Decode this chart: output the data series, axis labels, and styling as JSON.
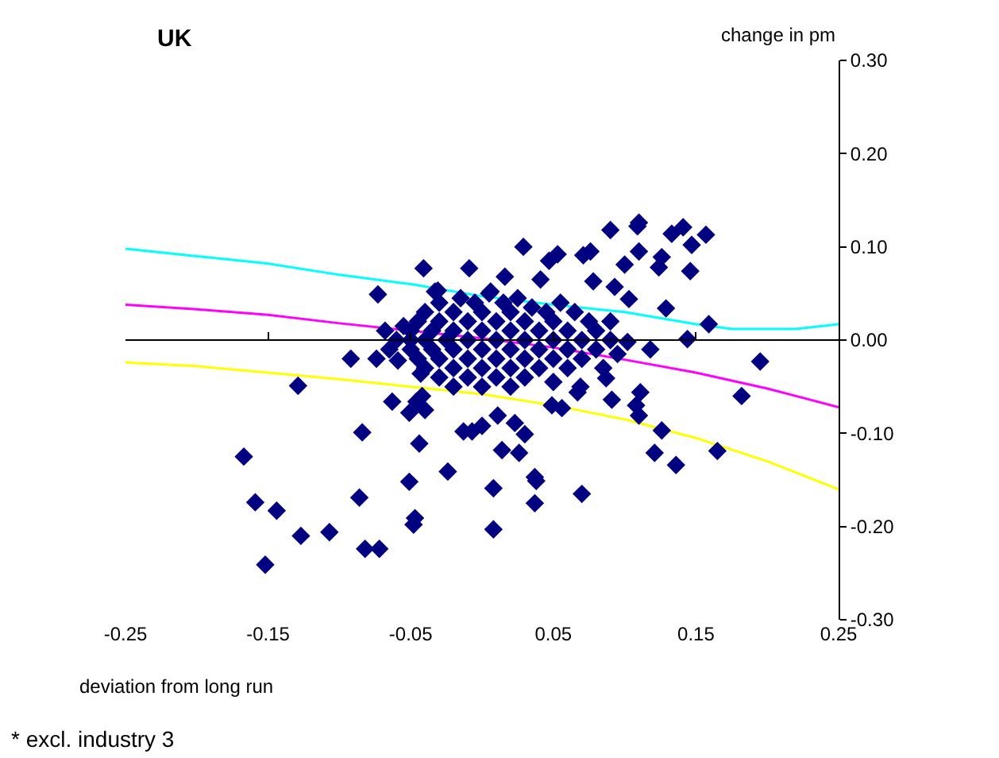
{
  "chart_data": {
    "type": "scatter",
    "title": "UK",
    "xlabel": "deviation from long run",
    "ylabel": "change in pm",
    "annotations": [
      "* excl. industry 3"
    ],
    "xlim": [
      -0.25,
      0.25
    ],
    "xticks": [
      -0.25,
      -0.15,
      -0.05,
      0.05,
      0.15,
      0.25
    ],
    "ylim": [
      -0.3,
      0.3
    ],
    "yticks": [
      {
        "value": -0.3,
        "label": "-0.30"
      },
      {
        "value": -0.2,
        "label": "-0.20"
      },
      {
        "value": -0.1,
        "label": "-0.10"
      },
      {
        "value": 0,
        "label": "0.00"
      },
      {
        "value": 0.1,
        "label": "0.10"
      },
      {
        "value": 0.2,
        "label": "0.20"
      },
      {
        "value": 0.3,
        "label": "0.30"
      }
    ],
    "grid": false,
    "ref_lines": [
      {
        "axis": "y",
        "value": 0,
        "color": "#000000",
        "line_style": "solid"
      }
    ],
    "marker": "diamond",
    "series": [
      {
        "type": "line",
        "marker": "none",
        "color": "#00ffff",
        "x": [
          -0.25,
          -0.2,
          -0.15,
          -0.1,
          -0.05,
          0,
          0.05,
          0.1,
          0.15,
          0.175,
          0.22,
          0.25
        ],
        "values": [
          0.098,
          0.09,
          0.082,
          0.07,
          0.06,
          0.047,
          0.038,
          0.03,
          0.017,
          0.012,
          0.012,
          0.017
        ]
      },
      {
        "type": "line",
        "marker": "none",
        "color": "#ff00ff",
        "x": [
          -0.25,
          -0.2,
          -0.15,
          -0.1,
          -0.05,
          0,
          0.05,
          0.1,
          0.15,
          0.2,
          0.25
        ],
        "values": [
          0.038,
          0.033,
          0.027,
          0.018,
          0.01,
          0.002,
          -0.008,
          -0.021,
          -0.035,
          -0.052,
          -0.072
        ]
      },
      {
        "type": "line",
        "marker": "none",
        "color": "#ffff00",
        "x": [
          -0.25,
          -0.2,
          -0.15,
          -0.1,
          -0.05,
          0,
          0.05,
          0.1,
          0.15,
          0.2,
          0.25
        ],
        "values": [
          -0.024,
          -0.028,
          -0.035,
          -0.042,
          -0.05,
          -0.058,
          -0.07,
          -0.085,
          -0.105,
          -0.13,
          -0.16
        ]
      },
      {
        "color": "#000080",
        "x": [
          -0.167,
          -0.159,
          -0.144,
          -0.152,
          -0.129,
          -0.127,
          -0.107,
          -0.086,
          -0.084,
          -0.082,
          -0.072,
          -0.092,
          -0.074,
          -0.073,
          -0.051,
          -0.048,
          -0.047,
          -0.044,
          -0.042,
          -0.041,
          -0.009,
          -0.031,
          -0.063,
          -0.046,
          -0.051,
          -0.04,
          -0.024,
          0.008,
          0.008,
          -0.013,
          0,
          0.11,
          0.09,
          0.109,
          0.133,
          0.141,
          0.157,
          0.147,
          0.029,
          0.053,
          0.047,
          0.071,
          0.076,
          0.11,
          0.1,
          0.126,
          0.124,
          0.146,
          0.016,
          0.041,
          0.093,
          0.078,
          0.103,
          0.129,
          0.159,
          0.144,
          0.118,
          0.195,
          0.182,
          -0.043,
          0.111,
          0.108,
          0.11,
          0.126,
          0.121,
          0.136,
          0.165,
          0.091,
          0.037,
          0.038,
          0.037,
          0.07,
          0.014,
          0.026,
          0.03,
          -0.007,
          0.011,
          0.023,
          0.049,
          0.056,
          0.069,
          0.067,
          0.087,
          0.102,
          -0.033,
          0.006,
          -0.068,
          -0.059,
          -0.05,
          -0.05,
          -0.05,
          -0.045,
          -0.045,
          -0.04,
          -0.04,
          -0.04,
          -0.035,
          -0.035,
          -0.03,
          -0.03,
          -0.03,
          -0.03,
          -0.025,
          -0.02,
          -0.02,
          -0.02,
          -0.02,
          -0.02,
          -0.015,
          -0.01,
          -0.01,
          -0.01,
          -0.01,
          -0.005,
          0,
          0,
          0,
          0,
          0,
          0.005,
          0.01,
          0.01,
          0.01,
          0.01,
          0.015,
          0.02,
          0.02,
          0.02,
          0.02,
          0.02,
          0.025,
          0.03,
          0.03,
          0.03,
          0.03,
          0.035,
          0.04,
          0.04,
          0.04,
          0.045,
          0.05,
          0.05,
          0.05,
          0.05,
          0.055,
          0.06,
          0.06,
          0.06,
          0.065,
          0.07,
          0.07,
          0.075,
          0.08,
          0.08,
          0.085,
          0.09,
          0.09,
          0.095,
          -0.06,
          -0.065,
          -0.055
        ],
        "values": [
          -0.125,
          -0.174,
          -0.183,
          -0.241,
          -0.049,
          -0.21,
          -0.206,
          -0.169,
          -0.099,
          -0.224,
          -0.224,
          -0.02,
          -0.02,
          0.049,
          -0.152,
          -0.198,
          -0.191,
          -0.111,
          -0.06,
          0.077,
          0.077,
          0.053,
          -0.066,
          -0.066,
          -0.078,
          -0.075,
          -0.141,
          -0.203,
          -0.159,
          -0.098,
          -0.092,
          0.126,
          0.118,
          0.122,
          0.114,
          0.121,
          0.113,
          0.102,
          0.1,
          0.092,
          0.085,
          0.091,
          0.095,
          0.095,
          0.081,
          0.089,
          0.078,
          0.074,
          0.068,
          0.065,
          0.057,
          0.063,
          0.044,
          0.034,
          0.017,
          0.001,
          -0.01,
          -0.023,
          -0.06,
          -0.036,
          -0.056,
          -0.07,
          -0.081,
          -0.097,
          -0.121,
          -0.134,
          -0.119,
          -0.064,
          -0.147,
          -0.151,
          -0.175,
          -0.165,
          -0.118,
          -0.121,
          -0.101,
          -0.098,
          -0.081,
          -0.089,
          -0.07,
          -0.073,
          -0.05,
          -0.056,
          -0.041,
          -0.002,
          0.052,
          0.052,
          0.01,
          -0.022,
          0,
          0.01,
          -0.01,
          0.02,
          -0.02,
          0.03,
          0,
          -0.03,
          0.01,
          -0.01,
          0.04,
          0.02,
          -0.02,
          -0.04,
          0,
          0.03,
          0.01,
          -0.01,
          -0.03,
          -0.05,
          0.045,
          0.02,
          0,
          -0.02,
          -0.04,
          0.04,
          0.03,
          0.01,
          -0.01,
          -0.03,
          -0.05,
          0.05,
          0.02,
          0,
          -0.02,
          -0.04,
          0.04,
          0.03,
          0.01,
          -0.01,
          -0.03,
          -0.05,
          0.045,
          0.02,
          0,
          -0.02,
          -0.04,
          0.035,
          0.01,
          -0.01,
          -0.03,
          0.03,
          0.02,
          0,
          -0.02,
          -0.045,
          0.04,
          0.01,
          -0.01,
          -0.03,
          0.03,
          0,
          -0.02,
          0.02,
          0.01,
          -0.01,
          -0.03,
          0.02,
          0,
          -0.015,
          0,
          -0.01,
          0.015
        ]
      }
    ]
  }
}
